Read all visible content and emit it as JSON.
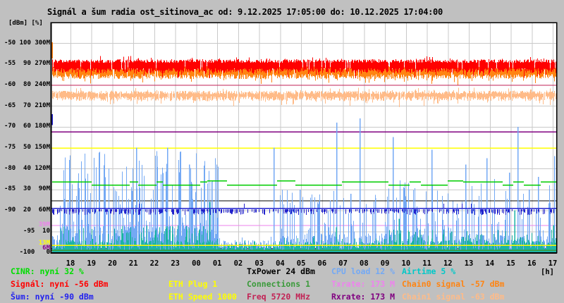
{
  "chart_data": {
    "type": "line",
    "title": "Signál a šum radia ost_sitinova_ac od: 9.12.2025 17:05:00 do: 10.12.2025 17:04:00",
    "time_range": {
      "from": "9.12.2025 17:05:00",
      "to": "10.12.2025 17:04:00"
    },
    "y_axis": {
      "unit_header": "[dBm] [%]",
      "scales": {
        "dbm": [
          -100,
          -45
        ],
        "percent": [
          0,
          110
        ],
        "rate_M": [
          0,
          330
        ]
      },
      "rows": [
        " -50 100 300M",
        " -55  90 270M",
        " -60  80 240M",
        " -65  70 210M",
        " -70  60 180M",
        " -75  50 150M",
        " -80  40 120M",
        " -85  30  90M",
        " -90  20  60M",
        " -95  10",
        "-100   0"
      ],
      "colored_ticks": [
        {
          "label": "39M",
          "color": "#ee82ee",
          "rate_M": 39
        },
        {
          "label": "13M",
          "color": "#ffff00",
          "rate_M": 13
        },
        {
          "label": "6M",
          "color": "#880088",
          "rate_M": 6
        }
      ]
    },
    "x_axis": {
      "labels": [
        "18",
        "19",
        "20",
        "21",
        "22",
        "23",
        "00",
        "01",
        "02",
        "03",
        "04",
        "05",
        "06",
        "07",
        "08",
        "09",
        "10",
        "11",
        "12",
        "13",
        "14",
        "15",
        "16",
        "17"
      ],
      "unit": "[h]"
    },
    "series": [
      {
        "name": "CINR",
        "color": "#00cc00",
        "style": "step-line",
        "percent_now": 32,
        "percent_range": [
          31,
          34
        ]
      },
      {
        "name": "Signál",
        "color": "#ff0000",
        "style": "noisy-band",
        "dbm_now": -56,
        "dbm_band": [
          -53.9,
          -57.2
        ]
      },
      {
        "name": "Šum",
        "color": "#2222cc",
        "style": "dashed-line",
        "dbm_now": -90,
        "dbm_level": -89.4
      },
      {
        "name": "ETH Plug",
        "color": "#ffff00",
        "style": "flat-line",
        "value": 1,
        "rate_M": 13
      },
      {
        "name": "ETH Speed",
        "color": "#ffff00",
        "style": "flat-line",
        "value": 1000,
        "rate_M": 150
      },
      {
        "name": "TxPower",
        "color": "#000000",
        "style": "flat-line",
        "dbm_value": 24,
        "percent": 24.8
      },
      {
        "name": "Connections",
        "color": "#3a9a3a",
        "style": "flat-line",
        "value": 1,
        "percent": 1
      },
      {
        "name": "Freq",
        "color": "#c22255",
        "style": "flat-line",
        "mhz": 5720,
        "rate_M": 240
      },
      {
        "name": "CPU load",
        "color": "#74a9f4",
        "style": "spike-area",
        "percent_now": 12,
        "segments": [
          {
            "from_h": 0,
            "to_h": 0.4,
            "base_pct": 8,
            "spike_prob": 0.15,
            "spike_max_pct": 12
          },
          {
            "from_h": 0.4,
            "to_h": 8.0,
            "base_pct": 12,
            "spike_prob": 0.6,
            "spike_max_pct": 50
          },
          {
            "from_h": 8.0,
            "to_h": 10.9,
            "base_pct": 5,
            "spike_prob": 0.08,
            "spike_max_pct": 8
          },
          {
            "from_h": 10.9,
            "to_h": 16.1,
            "base_pct": 8,
            "spike_prob": 0.3,
            "spike_max_pct": 30
          },
          {
            "from_h": 16.1,
            "to_h": 24.2,
            "base_pct": 8,
            "spike_prob": 0.35,
            "spike_max_pct": 35
          }
        ],
        "tall_spikes": [
          [
            4.07,
            50
          ],
          [
            5.04,
            46
          ],
          [
            5.55,
            50
          ],
          [
            6.15,
            48
          ],
          [
            6.59,
            42
          ],
          [
            10.63,
            50
          ],
          [
            11.87,
            30
          ],
          [
            13.62,
            62
          ],
          [
            14.29,
            28
          ],
          [
            14.73,
            64
          ],
          [
            15.47,
            26
          ],
          [
            16.31,
            55
          ],
          [
            18.16,
            49
          ],
          [
            19.77,
            42
          ],
          [
            20.78,
            45
          ],
          [
            21.86,
            38
          ],
          [
            22.26,
            60
          ],
          [
            22.8,
            30
          ],
          [
            23.23,
            36
          ],
          [
            24.0,
            46
          ]
        ]
      },
      {
        "name": "Txrate",
        "color": "#ee82ee",
        "style": "flat-line",
        "rate_now_M": 173,
        "rate_M": 39
      },
      {
        "name": "Rxrate",
        "color": "#800080",
        "style": "flat-line",
        "rate_now_M": 173,
        "rate_M": 173,
        "second_line_rate_M": 6
      },
      {
        "name": "Airtime",
        "color": "#1cb4a4",
        "style": "spike-area",
        "percent_now": 5,
        "segments": [
          {
            "from_h": 0,
            "to_h": 0.4,
            "base_pct": 3,
            "spike_prob": 0.1,
            "spike_max_pct": 5
          },
          {
            "from_h": 0.4,
            "to_h": 8.0,
            "base_pct": 5,
            "spike_prob": 0.35,
            "spike_max_pct": 13
          },
          {
            "from_h": 8.0,
            "to_h": 10.9,
            "base_pct": 3,
            "spike_prob": 0.08,
            "spike_max_pct": 6
          },
          {
            "from_h": 10.9,
            "to_h": 16.1,
            "base_pct": 4,
            "spike_prob": 0.15,
            "spike_max_pct": 8
          },
          {
            "from_h": 16.1,
            "to_h": 24.2,
            "base_pct": 5,
            "spike_prob": 0.3,
            "spike_max_pct": 11
          }
        ],
        "tall_spikes": [
          [
            7.56,
            24
          ],
          [
            13.6,
            12
          ],
          [
            16.6,
            16
          ],
          [
            19.1,
            10
          ],
          [
            22.1,
            20
          ],
          [
            23.95,
            13
          ]
        ]
      },
      {
        "name": "Chain0 signal",
        "color": "#ff8412",
        "style": "noisy-band",
        "dbm_now": -57,
        "dbm_band": [
          -55.5,
          -58.6
        ]
      },
      {
        "name": "Chain1 signal",
        "color": "#ffbb88",
        "style": "noisy-band",
        "dbm_now": -63,
        "dbm_band": [
          -61.4,
          -63.9
        ]
      }
    ],
    "startup_marks": [
      {
        "color": "#ff8412",
        "dbm_from": -49.8,
        "dbm_to": -53.7
      },
      {
        "color": "#2222cc",
        "dbm_from": -67.0,
        "dbm_to": -69.6
      }
    ]
  },
  "legend": {
    "columns": [
      {
        "items": [
          {
            "row": 0,
            "label": "CINR: nyní 32 %",
            "color": "#00dd00"
          },
          {
            "row": 1,
            "label": "Signál: nyní -56 dBm",
            "color": "#ff0000"
          },
          {
            "row": 2,
            "label": "Šum: nyní -90 dBm",
            "color": "#2222ee"
          }
        ]
      },
      {
        "items": [
          {
            "row": 1,
            "label": "ETH Plug 1",
            "color": "#ffff00"
          },
          {
            "row": 2,
            "label": "ETH Speed 1000",
            "color": "#ffff00"
          }
        ]
      },
      {
        "items": [
          {
            "row": 0,
            "label": "TxPower 24 dBm",
            "color": "#000000"
          },
          {
            "row": 1,
            "label": "Connections 1",
            "color": "#3a9a3a"
          },
          {
            "row": 2,
            "label": "Freq 5720 MHz",
            "color": "#c22255"
          }
        ]
      },
      {
        "items": [
          {
            "row": 0,
            "label": "CPU load 12 %",
            "color": "#74a9f4"
          },
          {
            "row": 1,
            "label": "Txrate: 173 M",
            "color": "#ee82ee"
          },
          {
            "row": 2,
            "label": "Rxrate: 173 M",
            "color": "#800080"
          }
        ]
      },
      {
        "items": [
          {
            "row": 0,
            "label": "Airtime 5 %",
            "color": "#00c8c8"
          },
          {
            "row": 1,
            "label": "Chain0 signal -57 dBm",
            "color": "#ff8412"
          },
          {
            "row": 2,
            "label": "Chain1 signal -63 dBm",
            "color": "#ffbb88"
          }
        ]
      }
    ]
  }
}
